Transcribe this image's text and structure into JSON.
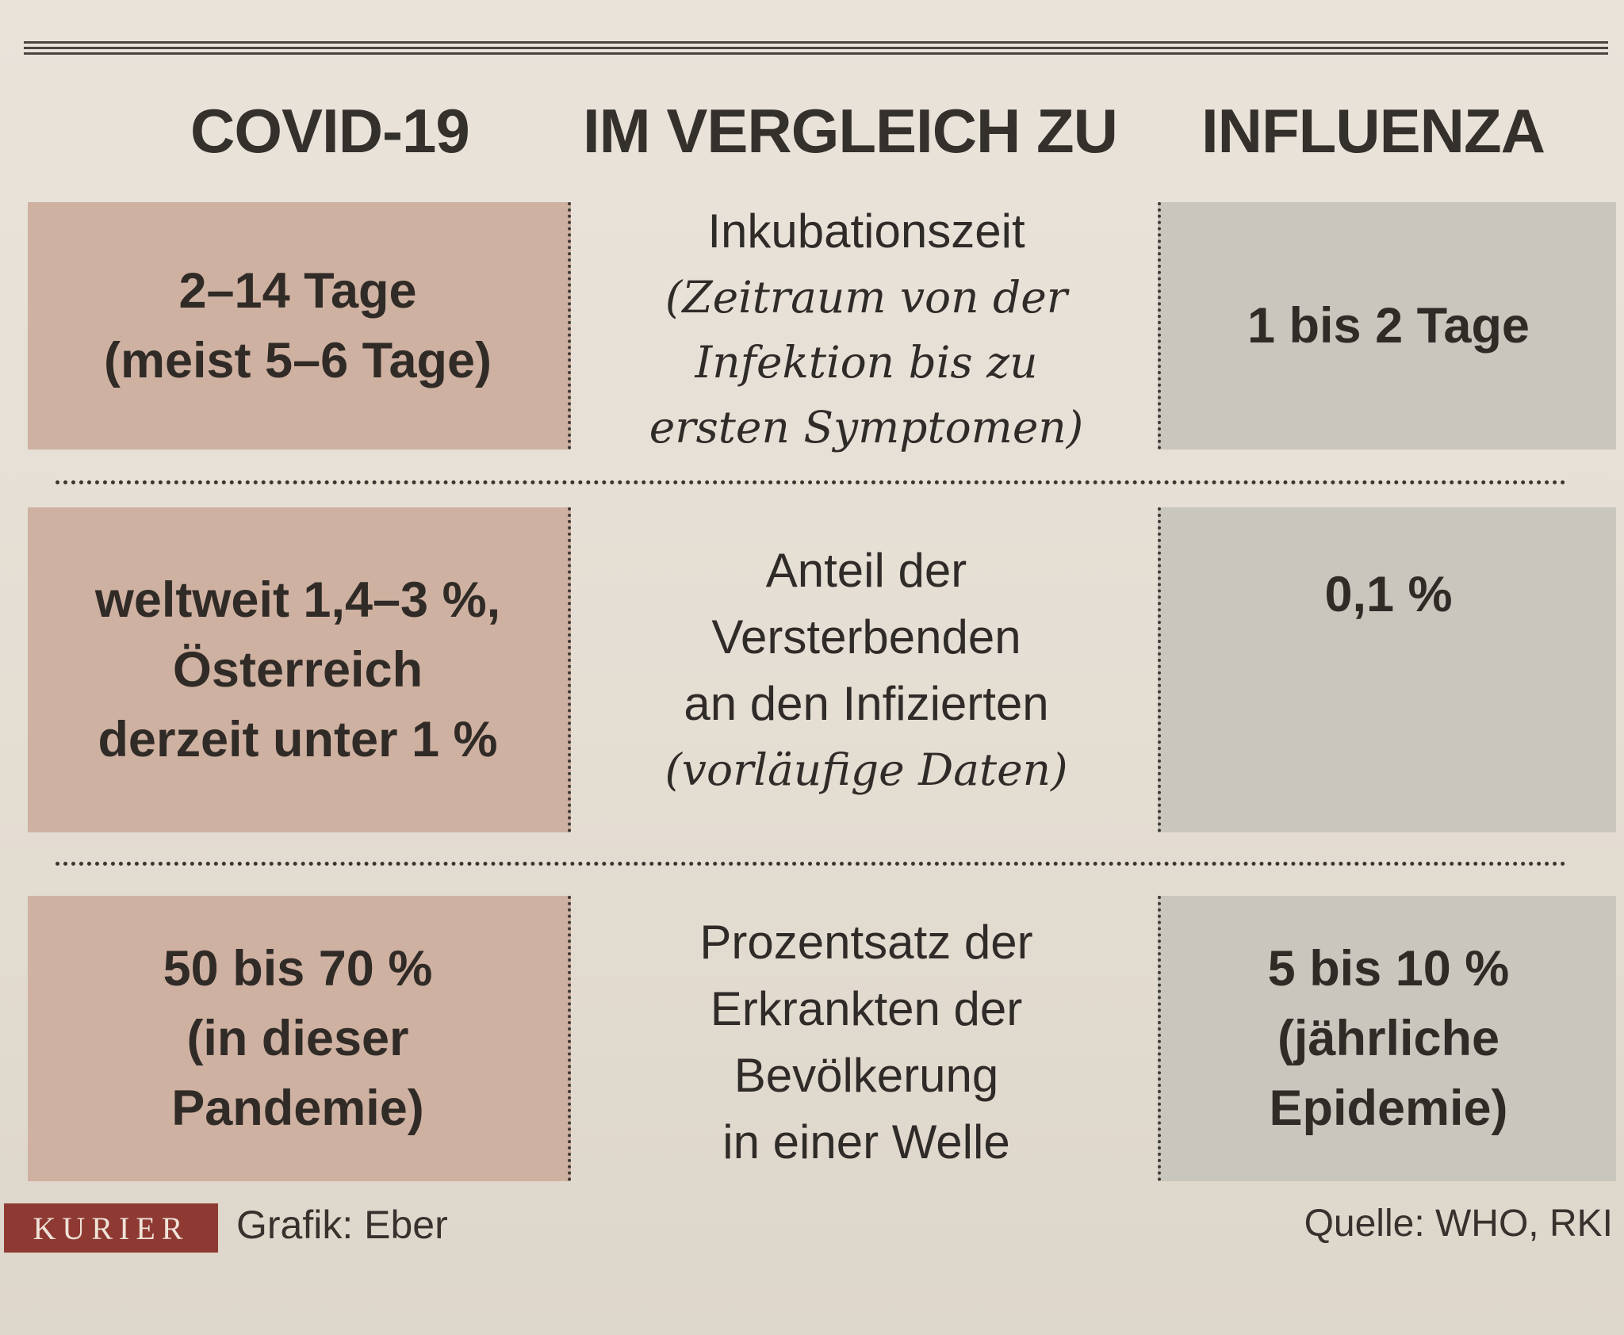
{
  "headers": {
    "left": "COVID-19",
    "middle": "IM VERGLEICH ZU",
    "right": "INFLUENZA"
  },
  "rows": [
    {
      "covid": [
        "2–14 Tage",
        "(meist 5–6 Tage)"
      ],
      "label": [
        "Inkubationszeit"
      ],
      "label_italic": [
        "(Zeitraum von der",
        "Infektion bis zu",
        "ersten Symptomen)"
      ],
      "influenza": [
        "1 bis 2 Tage"
      ]
    },
    {
      "covid": [
        "weltweit  1,4–3 %,",
        "Österreich",
        "derzeit unter  1 %"
      ],
      "label": [
        "Anteil der",
        "Versterbenden",
        "an den Infizierten"
      ],
      "label_italic": [
        "(vorläufige Daten)"
      ],
      "influenza": [
        "0,1 %"
      ]
    },
    {
      "covid": [
        "50 bis 70 %",
        "(in dieser",
        "Pandemie)"
      ],
      "label": [
        "Prozentsatz der",
        "Erkrankten der",
        "Bevölkerung",
        "in einer Welle"
      ],
      "label_italic": [],
      "influenza": [
        "5 bis 10 %",
        "(jährliche",
        "Epidemie)"
      ]
    }
  ],
  "footer": {
    "logo": "KURIER",
    "credit": "Grafik: Eber",
    "source": "Quelle: WHO, RKI"
  },
  "colors": {
    "covid_box": "#cfb1a1",
    "influenza_box": "#c9c6bd",
    "logo_background": "#8e3a33",
    "paper": "#e6e0d6"
  }
}
